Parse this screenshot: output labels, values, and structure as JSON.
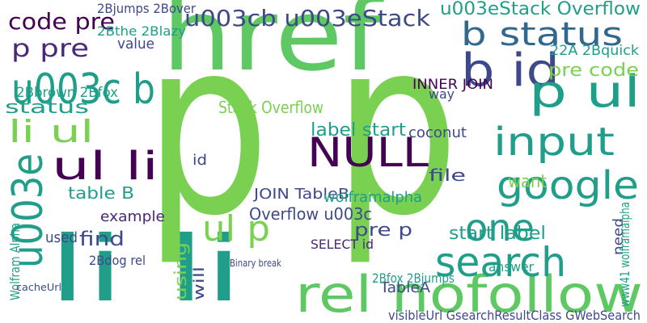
{
  "words": [
    "p p",
    "href",
    "li li",
    "rel nofollow",
    "search",
    "u003c b",
    "u003e",
    "ul li",
    "li ul",
    "NULL",
    "input",
    "google",
    "b id",
    "p ul",
    "b status",
    "ul p",
    "one",
    "code pre",
    "p pre",
    "u003cb u003eStack",
    "u003eStack Overflow",
    "status",
    "2Bbrown 2Bfox",
    "label start",
    "Stack Overflow",
    "INNER JOIN",
    "pre code",
    "22A 2Bquick",
    "table B",
    "find",
    "example",
    "Overflow u003c",
    "JOIN TableB",
    "pre p",
    "start label",
    "file",
    "want",
    "TableA",
    "using",
    "will",
    "2Bfox 2Bjumps",
    "visibleUrl GsearchResultClass GWebSearch",
    "Wolfram Alpha",
    "wolframalpha",
    "SELECT id",
    "coconut",
    "2Bdog rel",
    "value",
    "2Bthe 2Blazy",
    "2Bjumps 2Bover",
    "way",
    "answer",
    "need",
    "www41 wolframalpha",
    "id",
    "used",
    "Binary break",
    "cacheUrl"
  ]
}
